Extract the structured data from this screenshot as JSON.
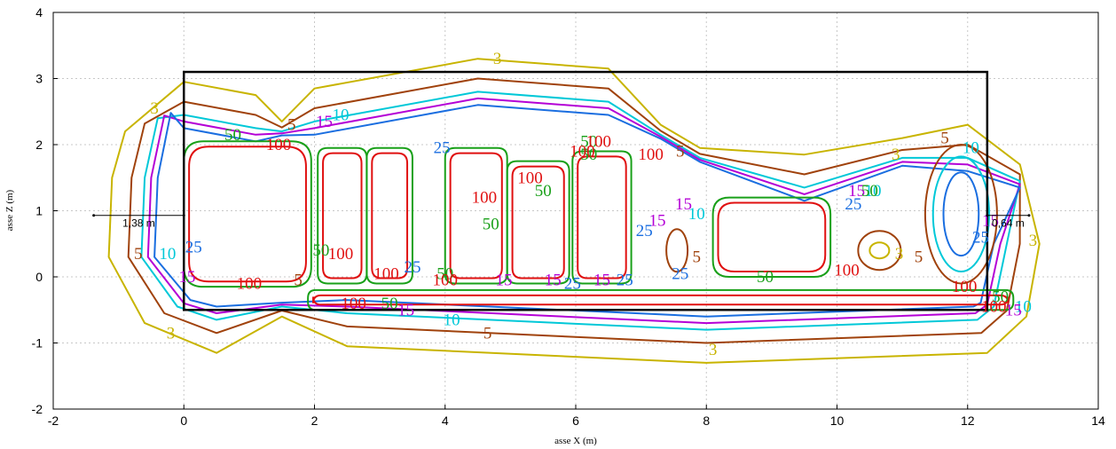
{
  "chart_data": {
    "type": "contour",
    "xlabel": "asse X (m)",
    "ylabel": "asse Z (m)",
    "xlim": [
      -2,
      14
    ],
    "ylim": [
      -2,
      4
    ],
    "xticks": [
      "-2",
      "0",
      "2",
      "4",
      "6",
      "8",
      "10",
      "12",
      "14"
    ],
    "yticks": [
      "-2",
      "-1",
      "0",
      "1",
      "2",
      "3",
      "4"
    ],
    "grid": true,
    "rectangle": {
      "x0": 0,
      "y0": -0.5,
      "x1": 12.3,
      "y1": 3.1
    },
    "annotations": [
      {
        "text": "1,38 m",
        "x_from": -1.38,
        "x_to": 0,
        "y": 0.93
      },
      {
        "text": "0,64 m",
        "x_from": 12.3,
        "x_to": 12.94,
        "y": 0.93
      }
    ],
    "levels": [
      {
        "level": "3",
        "color": "#c8b400"
      },
      {
        "level": "5",
        "color": "#a0420c"
      },
      {
        "level": "10",
        "color": "#00c8d8"
      },
      {
        "level": "15",
        "color": "#b400d6"
      },
      {
        "level": "25",
        "color": "#1a6ee0"
      },
      {
        "level": "50",
        "color": "#19a019"
      },
      {
        "level": "100",
        "color": "#e01010"
      }
    ],
    "contour_labels": [
      {
        "text": "3",
        "x": -0.45,
        "y": 2.55,
        "level": "3"
      },
      {
        "text": "3",
        "x": 4.8,
        "y": 3.3,
        "level": "3"
      },
      {
        "text": "3",
        "x": -0.2,
        "y": -0.85,
        "level": "3"
      },
      {
        "text": "3",
        "x": 8.1,
        "y": -1.1,
        "level": "3"
      },
      {
        "text": "3",
        "x": 10.95,
        "y": 0.35,
        "level": "3"
      },
      {
        "text": "3",
        "x": 10.9,
        "y": 1.85,
        "level": "3"
      },
      {
        "text": "3",
        "x": 13.0,
        "y": 0.55,
        "level": "3"
      },
      {
        "text": "5",
        "x": 1.65,
        "y": 2.3,
        "level": "5"
      },
      {
        "text": "5",
        "x": -0.7,
        "y": 0.35,
        "level": "5"
      },
      {
        "text": "5",
        "x": 7.6,
        "y": 1.9,
        "level": "5"
      },
      {
        "text": "5",
        "x": 7.85,
        "y": 0.3,
        "level": "5"
      },
      {
        "text": "5",
        "x": 11.25,
        "y": 0.3,
        "level": "5"
      },
      {
        "text": "5",
        "x": 11.65,
        "y": 2.1,
        "level": "5"
      },
      {
        "text": "5",
        "x": 4.65,
        "y": -0.85,
        "level": "5"
      },
      {
        "text": "5",
        "x": 1.75,
        "y": -0.05,
        "level": "5"
      },
      {
        "text": "10",
        "x": 2.4,
        "y": 2.45,
        "level": "10"
      },
      {
        "text": "10",
        "x": -0.25,
        "y": 0.35,
        "level": "10"
      },
      {
        "text": "10",
        "x": 7.85,
        "y": 0.95,
        "level": "10"
      },
      {
        "text": "10",
        "x": 10.55,
        "y": 1.3,
        "level": "10"
      },
      {
        "text": "10",
        "x": 12.05,
        "y": 1.95,
        "level": "10"
      },
      {
        "text": "10",
        "x": 4.1,
        "y": -0.65,
        "level": "10"
      },
      {
        "text": "10",
        "x": 12.85,
        "y": -0.45,
        "level": "10"
      },
      {
        "text": "15",
        "x": 2.15,
        "y": 2.35,
        "level": "15"
      },
      {
        "text": "15",
        "x": 0.05,
        "y": 0.0,
        "level": "15"
      },
      {
        "text": "15",
        "x": 7.65,
        "y": 1.1,
        "level": "15"
      },
      {
        "text": "15",
        "x": 7.25,
        "y": 0.85,
        "level": "15"
      },
      {
        "text": "15",
        "x": 10.3,
        "y": 1.3,
        "level": "15"
      },
      {
        "text": "15",
        "x": 12.35,
        "y": 0.85,
        "level": "15"
      },
      {
        "text": "15",
        "x": 12.7,
        "y": -0.5,
        "level": "15"
      },
      {
        "text": "15",
        "x": 3.4,
        "y": -0.5,
        "level": "15"
      },
      {
        "text": "15",
        "x": 4.9,
        "y": -0.05,
        "level": "15"
      },
      {
        "text": "15",
        "x": 5.65,
        "y": -0.05,
        "level": "15"
      },
      {
        "text": "15",
        "x": 6.4,
        "y": -0.05,
        "level": "15"
      },
      {
        "text": "25",
        "x": 0.15,
        "y": 0.45,
        "level": "25"
      },
      {
        "text": "25",
        "x": 3.95,
        "y": 1.95,
        "level": "25"
      },
      {
        "text": "25",
        "x": 7.05,
        "y": 0.7,
        "level": "25"
      },
      {
        "text": "25",
        "x": 10.25,
        "y": 1.1,
        "level": "25"
      },
      {
        "text": "25",
        "x": 12.2,
        "y": 0.6,
        "level": "25"
      },
      {
        "text": "25",
        "x": 3.5,
        "y": 0.15,
        "level": "25"
      },
      {
        "text": "25",
        "x": 5.95,
        "y": -0.1,
        "level": "25"
      },
      {
        "text": "25",
        "x": 6.75,
        "y": -0.05,
        "level": "25"
      },
      {
        "text": "25",
        "x": 7.6,
        "y": 0.05,
        "level": "25"
      },
      {
        "text": "50",
        "x": 0.75,
        "y": 2.15,
        "level": "50"
      },
      {
        "text": "50",
        "x": 2.1,
        "y": 0.4,
        "level": "50"
      },
      {
        "text": "50",
        "x": 4.7,
        "y": 0.8,
        "level": "50"
      },
      {
        "text": "50",
        "x": 5.5,
        "y": 1.3,
        "level": "50"
      },
      {
        "text": "50",
        "x": 6.2,
        "y": 1.85,
        "level": "50"
      },
      {
        "text": "50",
        "x": 6.2,
        "y": 2.05,
        "level": "50"
      },
      {
        "text": "50",
        "x": 8.9,
        "y": 0.0,
        "level": "50"
      },
      {
        "text": "50",
        "x": 10.5,
        "y": 1.3,
        "level": "50"
      },
      {
        "text": "50",
        "x": 3.15,
        "y": -0.4,
        "level": "50"
      },
      {
        "text": "50",
        "x": 4.0,
        "y": 0.05,
        "level": "50"
      },
      {
        "text": "50",
        "x": 12.5,
        "y": -0.3,
        "level": "50"
      },
      {
        "text": "100",
        "x": 1.45,
        "y": 2.0,
        "level": "100"
      },
      {
        "text": "100",
        "x": 2.4,
        "y": 0.35,
        "level": "100"
      },
      {
        "text": "100",
        "x": 1.0,
        "y": -0.1,
        "level": "100"
      },
      {
        "text": "100",
        "x": 4.6,
        "y": 1.2,
        "level": "100"
      },
      {
        "text": "100",
        "x": 5.3,
        "y": 1.5,
        "level": "100"
      },
      {
        "text": "100",
        "x": 6.1,
        "y": 1.9,
        "level": "100"
      },
      {
        "text": "100",
        "x": 6.35,
        "y": 2.05,
        "level": "100"
      },
      {
        "text": "100",
        "x": 7.15,
        "y": 1.85,
        "level": "100"
      },
      {
        "text": "100",
        "x": 10.15,
        "y": 0.1,
        "level": "100"
      },
      {
        "text": "100",
        "x": 11.95,
        "y": -0.15,
        "level": "100"
      },
      {
        "text": "100",
        "x": 12.4,
        "y": -0.45,
        "level": "100"
      },
      {
        "text": "100",
        "x": 2.6,
        "y": -0.4,
        "level": "100"
      },
      {
        "text": "100",
        "x": 3.1,
        "y": 0.05,
        "level": "100"
      },
      {
        "text": "100",
        "x": 4.0,
        "y": -0.05,
        "level": "100"
      }
    ]
  }
}
